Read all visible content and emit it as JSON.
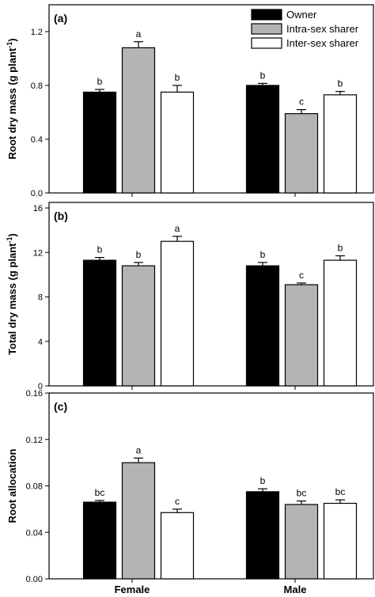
{
  "chart_data": [
    {
      "type": "bar",
      "panel_label": "(a)",
      "ylabel": "Root dry mass (g plant",
      "ylabel_sup": "-1",
      "ylabel_end": ")",
      "ylim": [
        0,
        1.4
      ],
      "yticks": [
        0.0,
        0.4,
        0.8,
        1.2
      ],
      "ytick_labels": [
        "0.0",
        "0.4",
        "0.8",
        "1.2"
      ],
      "categories": [
        "Female",
        "Male"
      ],
      "show_category_labels": false,
      "legend": {
        "position": "top-right",
        "show": true
      },
      "series": [
        {
          "name": "Owner",
          "color": "#000000",
          "values": [
            0.75,
            0.8
          ],
          "errors": [
            0.02,
            0.015
          ],
          "letters": [
            "b",
            "b"
          ]
        },
        {
          "name": "Intra-sex sharer",
          "color": "#b4b4b4",
          "values": [
            1.08,
            0.59
          ],
          "errors": [
            0.045,
            0.03
          ],
          "letters": [
            "a",
            "c"
          ]
        },
        {
          "name": "Inter-sex sharer",
          "color": "#ffffff",
          "values": [
            0.75,
            0.73
          ],
          "errors": [
            0.05,
            0.025
          ],
          "letters": [
            "b",
            "b"
          ]
        }
      ]
    },
    {
      "type": "bar",
      "panel_label": "(b)",
      "ylabel": "Total dry mass (g plant",
      "ylabel_sup": "-1",
      "ylabel_end": ")",
      "ylim": [
        0,
        16.5
      ],
      "yticks": [
        0,
        4,
        8,
        12,
        16
      ],
      "ytick_labels": [
        "0",
        "4",
        "8",
        "12",
        "16"
      ],
      "categories": [
        "Female",
        "Male"
      ],
      "show_category_labels": false,
      "legend": {
        "show": false
      },
      "series": [
        {
          "name": "Owner",
          "color": "#000000",
          "values": [
            11.3,
            10.8
          ],
          "errors": [
            0.25,
            0.3
          ],
          "letters": [
            "b",
            "b"
          ]
        },
        {
          "name": "Intra-sex sharer",
          "color": "#b4b4b4",
          "values": [
            10.8,
            9.1
          ],
          "errors": [
            0.3,
            0.15
          ],
          "letters": [
            "b",
            "c"
          ]
        },
        {
          "name": "Inter-sex sharer",
          "color": "#ffffff",
          "values": [
            13.0,
            11.3
          ],
          "errors": [
            0.45,
            0.4
          ],
          "letters": [
            "a",
            "b"
          ]
        }
      ]
    },
    {
      "type": "bar",
      "panel_label": "(c)",
      "ylabel": "Root allocation",
      "ylabel_sup": "",
      "ylabel_end": "",
      "ylim": [
        0,
        0.16
      ],
      "yticks": [
        0.0,
        0.04,
        0.08,
        0.12,
        0.16
      ],
      "ytick_labels": [
        "0.00",
        "0.04",
        "0.08",
        "0.12",
        "0.16"
      ],
      "categories": [
        "Female",
        "Male"
      ],
      "show_category_labels": true,
      "legend": {
        "show": false
      },
      "series": [
        {
          "name": "Owner",
          "color": "#000000",
          "values": [
            0.066,
            0.075
          ],
          "errors": [
            0.0015,
            0.0025
          ],
          "letters": [
            "bc",
            "b"
          ]
        },
        {
          "name": "Intra-sex sharer",
          "color": "#b4b4b4",
          "values": [
            0.1,
            0.064
          ],
          "errors": [
            0.004,
            0.003
          ],
          "letters": [
            "a",
            "bc"
          ]
        },
        {
          "name": "Inter-sex sharer",
          "color": "#ffffff",
          "values": [
            0.057,
            0.065
          ],
          "errors": [
            0.003,
            0.003
          ],
          "letters": [
            "c",
            "bc"
          ]
        }
      ]
    }
  ]
}
